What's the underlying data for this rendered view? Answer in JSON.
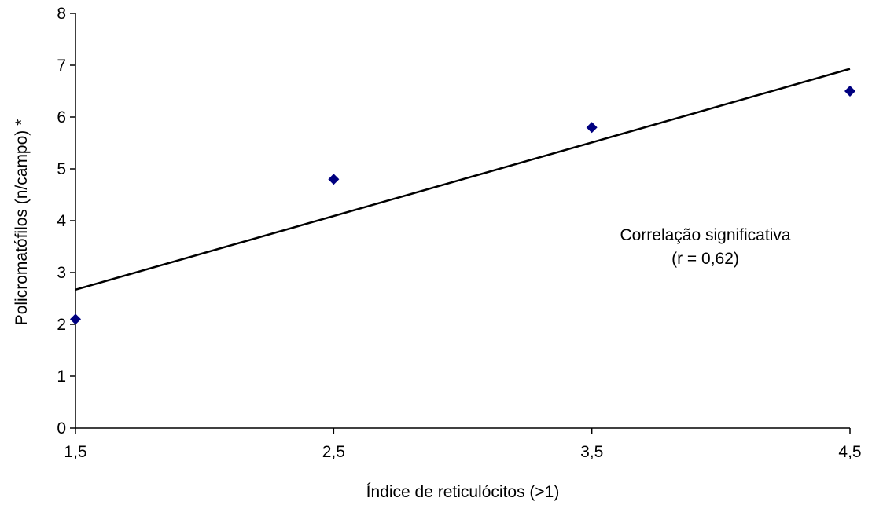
{
  "chart_data": {
    "type": "scatter",
    "xlabel": "Índice de reticulócitos (>1)",
    "ylabel": "Policromatófilos (n/campo) *",
    "xlim": [
      1.5,
      4.5
    ],
    "ylim": [
      0,
      8
    ],
    "x_ticks": [
      "1,5",
      "2,5",
      "3,5",
      "4,5"
    ],
    "x_tick_values": [
      1.5,
      2.5,
      3.5,
      4.5
    ],
    "y_ticks": [
      "0",
      "1",
      "2",
      "3",
      "4",
      "5",
      "6",
      "7",
      "8"
    ],
    "y_tick_values": [
      0,
      1,
      2,
      3,
      4,
      5,
      6,
      7,
      8
    ],
    "grid": false,
    "legend": "none",
    "series": [
      {
        "x": [
          1.5,
          2.5,
          3.5,
          4.5
        ],
        "y": [
          2.1,
          4.8,
          5.8,
          6.5
        ],
        "marker": "diamond",
        "color": "#000080"
      }
    ],
    "trendline": {
      "x": [
        1.5,
        4.5
      ],
      "y": [
        2.67,
        6.93
      ],
      "color": "#000000"
    },
    "annotation": {
      "lines": [
        "Correlação significativa",
        "(r = 0,62)"
      ]
    }
  }
}
